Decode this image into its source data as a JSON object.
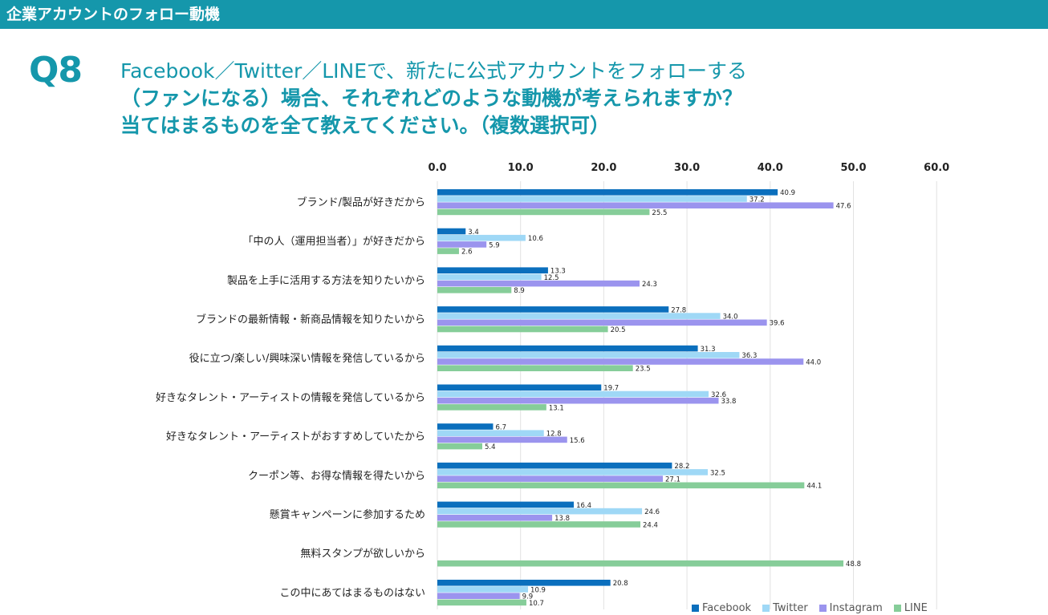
{
  "header": {
    "title": "企業アカウントのフォロー動機"
  },
  "question": {
    "number": "Q8",
    "line1": "Facebook／Twitter／LINEで、新たに公式アカウントをフォローする",
    "line2": "（ファンになる）場合、それぞれどのような動機が考えられますか？",
    "line3": "当てはまるものを全て教えてください。（複数選択可）"
  },
  "chart_data": {
    "type": "bar",
    "orientation": "horizontal",
    "xlim": [
      0,
      60
    ],
    "ticks": [
      "0.0",
      "10.0",
      "20.0",
      "30.0",
      "40.0",
      "50.0",
      "60.0"
    ],
    "grid": true,
    "legend_position": "bottom-right",
    "categories": [
      "ブランド/製品が好きだから",
      "「中の人（運用担当者）」が好きだから",
      "製品を上手に活用する方法を知りたいから",
      "ブランドの最新情報・新商品情報を知りたいから",
      "役に立つ/楽しい/興味深い情報を発信しているから",
      "好きなタレント・アーティストの情報を発信しているから",
      "好きなタレント・アーティストがおすすめしていたから",
      "クーポン等、お得な情報を得たいから",
      "懸賞キャンペーンに参加するため",
      "無料スタンプが欲しいから",
      "この中にあてはまるものはない"
    ],
    "series": [
      {
        "name": "Facebook",
        "color": "#0b6fbd",
        "values": [
          40.9,
          3.4,
          13.3,
          27.8,
          31.3,
          19.7,
          6.7,
          28.2,
          16.4,
          null,
          20.8
        ]
      },
      {
        "name": "Twitter",
        "color": "#9fd8f6",
        "values": [
          37.2,
          10.6,
          12.5,
          34.0,
          36.3,
          32.6,
          12.8,
          32.5,
          24.6,
          null,
          10.9
        ]
      },
      {
        "name": "Instagram",
        "color": "#9b94ee",
        "values": [
          47.6,
          5.9,
          24.3,
          39.6,
          44.0,
          33.8,
          15.6,
          27.1,
          13.8,
          null,
          9.9
        ]
      },
      {
        "name": "LINE",
        "color": "#86cd99",
        "values": [
          25.5,
          2.6,
          8.9,
          20.5,
          23.5,
          13.1,
          5.4,
          44.1,
          24.4,
          48.8,
          10.7
        ]
      }
    ]
  }
}
